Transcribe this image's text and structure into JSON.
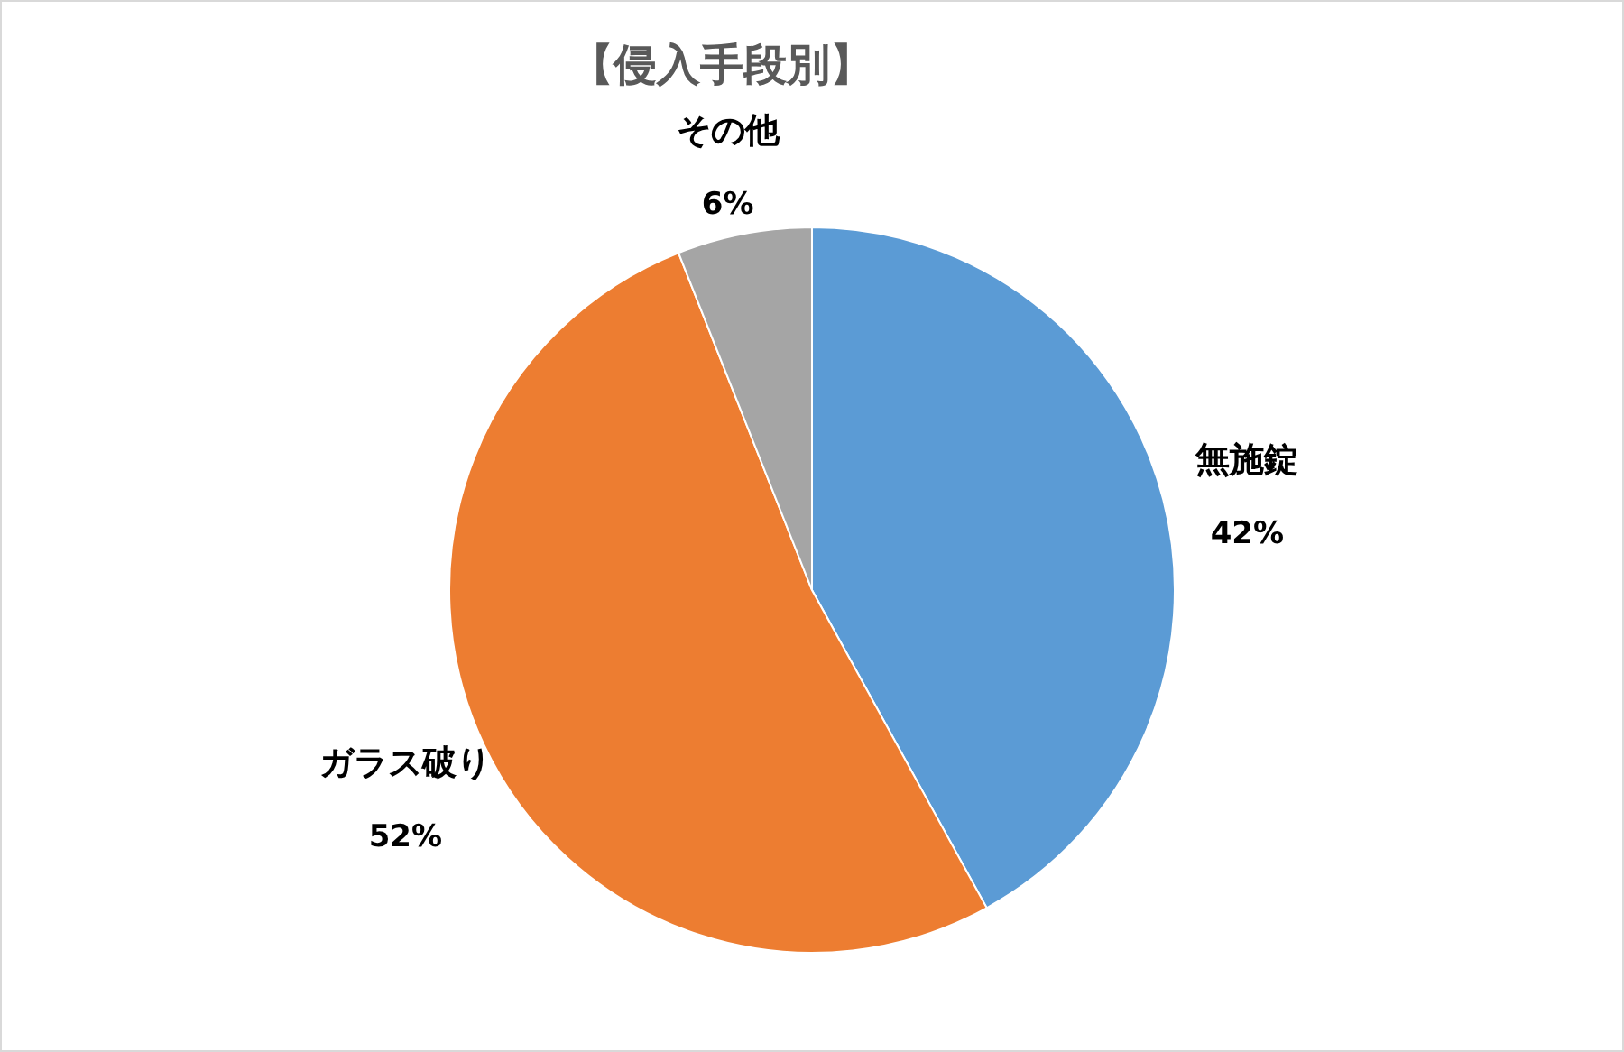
{
  "chart_data": {
    "type": "pie",
    "title": "【侵入手段別】",
    "categories": [
      "無施錠",
      "ガラス破り",
      "その他"
    ],
    "values": [
      42,
      52,
      6
    ],
    "colors": [
      "#5b9bd5",
      "#ed7d31",
      "#a5a5a5"
    ],
    "value_labels": [
      "42%",
      "52%",
      "6%"
    ]
  }
}
